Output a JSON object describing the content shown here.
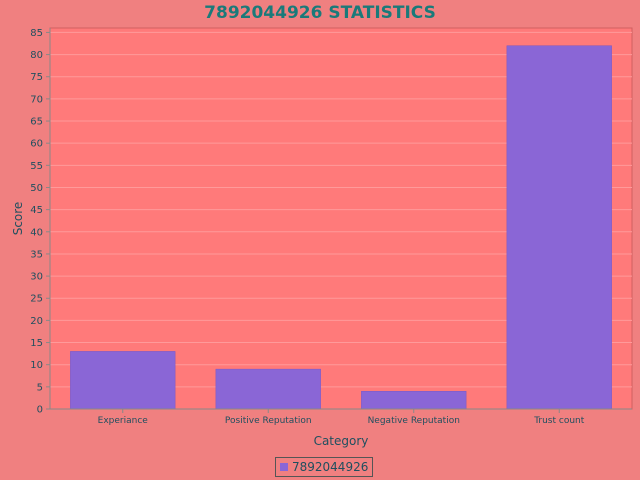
{
  "chart_data": {
    "type": "bar",
    "title": "7892044926 STATISTICS",
    "xlabel": "Category",
    "ylabel": "Score",
    "categories": [
      "Experiance",
      "Positive Reputation",
      "Negative Reputation",
      "Trust count"
    ],
    "series": [
      {
        "name": "7892044926",
        "values": [
          13,
          9,
          4,
          82
        ]
      }
    ],
    "ylim": [
      0,
      86
    ],
    "yticks": [
      0,
      5,
      10,
      15,
      20,
      25,
      30,
      35,
      40,
      45,
      50,
      55,
      60,
      65,
      70,
      75,
      80,
      85
    ],
    "grid": true,
    "legend_position": "bottom-center",
    "colors": {
      "background": "#f08080",
      "plot_area": "#ff7a7a",
      "bar": "#8a66d6",
      "title": "#1a7a7a",
      "text": "#1f4f5f"
    }
  }
}
